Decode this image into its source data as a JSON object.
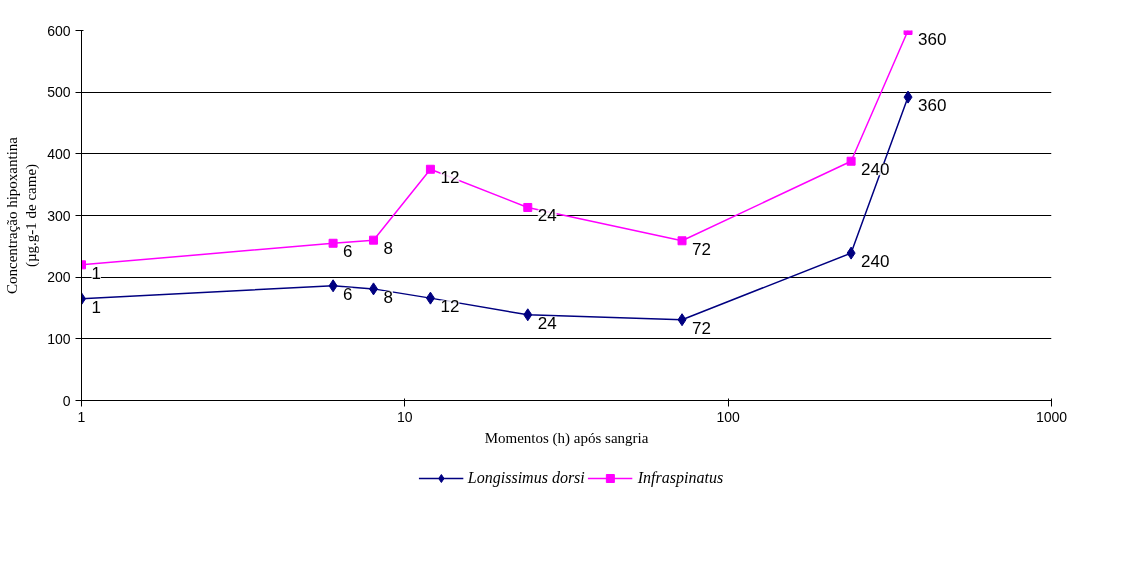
{
  "chart_data": {
    "type": "line",
    "xlabel": "Momentos (h) após sangria",
    "ylabel": "Concentração hipoxantina\n(µg.g-1 de came)",
    "log": "x",
    "xlim": [
      1,
      1000
    ],
    "xticks": [
      1,
      10,
      100,
      1000
    ],
    "ylim": [
      0,
      600
    ],
    "yticks": [
      0,
      100,
      200,
      300,
      400,
      500,
      600
    ],
    "grid": "y",
    "legend": "bottom",
    "series": [
      {
        "name": "Longissimus dorsi",
        "color": "#000080",
        "marker": "diamond",
        "x": [
          1,
          6,
          8,
          12,
          24,
          72,
          240,
          360
        ],
        "values": [
          165,
          186,
          181,
          166,
          139,
          131,
          239,
          492
        ]
      },
      {
        "name": "Infraspinatus",
        "color": "#ff00ff",
        "marker": "square",
        "x": [
          1,
          6,
          8,
          12,
          24,
          72,
          240,
          360
        ],
        "values": [
          220,
          255,
          260,
          375,
          313,
          259,
          388,
          600
        ]
      }
    ],
    "annotations": [
      {
        "text": "1",
        "x": 1,
        "y": 165
      },
      {
        "text": "6",
        "x": 6,
        "y": 186
      },
      {
        "text": "8",
        "x": 8,
        "y": 181
      },
      {
        "text": "12",
        "x": 12,
        "y": 166
      },
      {
        "text": "24",
        "x": 24,
        "y": 139
      },
      {
        "text": "72",
        "x": 72,
        "y": 131
      },
      {
        "text": "240",
        "x": 240,
        "y": 239
      },
      {
        "text": "360",
        "x": 360,
        "y": 492
      },
      {
        "text": "1",
        "x": 1,
        "y": 220
      },
      {
        "text": "6",
        "x": 6,
        "y": 255
      },
      {
        "text": "8",
        "x": 8,
        "y": 260
      },
      {
        "text": "12",
        "x": 12,
        "y": 375
      },
      {
        "text": "24",
        "x": 24,
        "y": 313
      },
      {
        "text": "72",
        "x": 72,
        "y": 259
      },
      {
        "text": "240",
        "x": 240,
        "y": 388
      },
      {
        "text": "360",
        "x": 360,
        "y": 600
      }
    ]
  }
}
